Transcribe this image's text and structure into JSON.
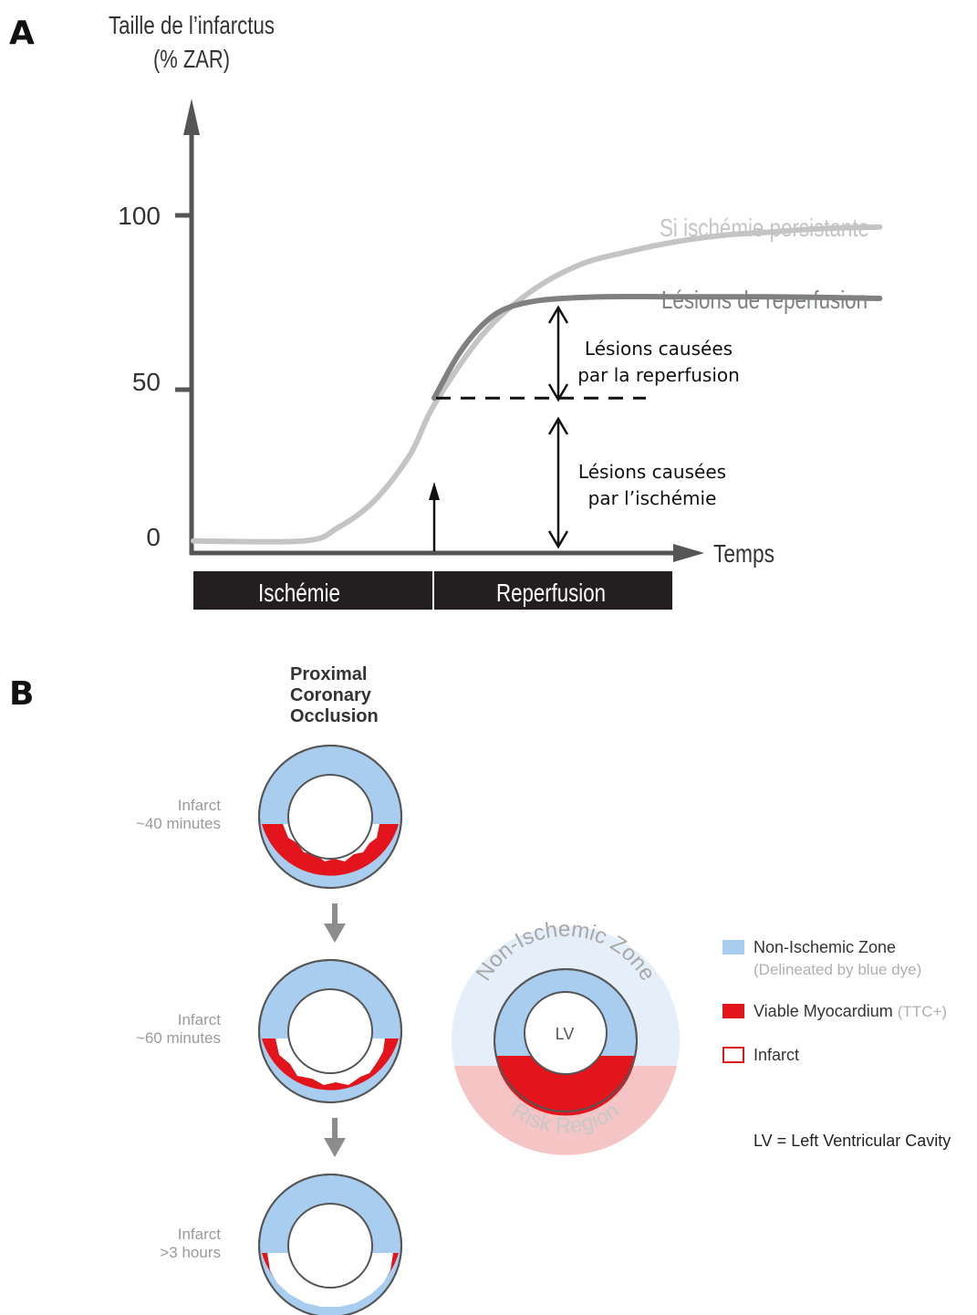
{
  "panel_a": {
    "label": "A",
    "y_axis_title_line1": "Taille de l’infarctus",
    "y_axis_title_line2": "(% ZAR)",
    "y_ticks": [
      "100",
      "50",
      "0"
    ],
    "x_axis_label": "Temps",
    "curve_persistent_label": "Si ischémie persistante",
    "curve_reperfusion_label": "Lésions de reperfusion",
    "annotation_reperfusion_line1": "Lésions causées",
    "annotation_reperfusion_line2": "par la reperfusion",
    "annotation_ischemia_line1": "Lésions causées",
    "annotation_ischemia_line2": "par l’ischémie",
    "phase_bar": [
      "Ischémie",
      "Reperfusion"
    ]
  },
  "chart_data": {
    "type": "line",
    "xlabel": "Temps",
    "ylabel": "Taille de l’infarctus (% ZAR)",
    "ylim": [
      0,
      100
    ],
    "y_ticks": [
      0,
      50,
      100
    ],
    "x_units": "relative time, 0 = start of ischemia, 1 = reperfusion onset",
    "reperfusion_x": 1.0,
    "ischemia_damage_level": 45,
    "series": [
      {
        "name": "Si ischémie persistante",
        "color": "#c4c4c4",
        "x": [
          0,
          0.46,
          0.6,
          0.75,
          0.9,
          1.0,
          1.2,
          1.4,
          1.6,
          1.8,
          2.0,
          2.2,
          2.4,
          2.6,
          2.85
        ],
        "y": [
          2,
          2,
          6,
          14,
          28,
          43,
          64,
          77,
          85,
          89,
          92,
          94,
          95,
          96,
          96.5
        ]
      },
      {
        "name": "Lésions de reperfusion",
        "color": "#7f8081",
        "x": [
          1.0,
          1.1,
          1.2,
          1.3,
          1.45,
          1.7,
          2.0,
          2.4,
          2.85
        ],
        "y": [
          45,
          58,
          67,
          72,
          74.5,
          75.5,
          75.5,
          75.5,
          75.0
        ]
      }
    ],
    "annotations": [
      {
        "text": "Lésions causées par la reperfusion",
        "from": 45,
        "to": 75
      },
      {
        "text": "Lésions causées par l’ischémie",
        "from": 0,
        "to": 45
      }
    ],
    "phases": [
      "Ischémie",
      "Reperfusion"
    ]
  },
  "panel_b": {
    "label": "B",
    "header_line1": "Proximal",
    "header_line2": "Coronary",
    "header_line3": "Occlusion",
    "stages": [
      {
        "line1": "Infarct",
        "line2": "~40 minutes",
        "infarct_extent": "subendocardial"
      },
      {
        "line1": "Infarct",
        "line2": "~60 minutes",
        "infarct_extent": "mid-wall"
      },
      {
        "line1": "Infarct",
        "line2": ">3 hours",
        "infarct_extent": "near-transmural"
      }
    ],
    "big_ring": {
      "top_label": "Non-Ischemic Zone",
      "bottom_label": "Risk Region",
      "center_label": "LV"
    },
    "legend": [
      {
        "label": "Non-Ischemic Zone",
        "note": "(Delineated by blue dye)",
        "color": "#a9cdee",
        "swatch": "filled"
      },
      {
        "label": "Viable Myocardium",
        "note": "(TTC+)",
        "color": "#e3141c",
        "swatch": "filled"
      },
      {
        "label": "Infarct",
        "note": "",
        "color": "#e3141c",
        "swatch": "outline"
      }
    ],
    "footnote": "LV = Left Ventricular Cavity"
  },
  "colors": {
    "axis": "#555556",
    "persistent_curve": "#c4c4c4",
    "reperfusion_curve": "#7f8081",
    "phase_bar": "#231f20",
    "non_ischemic_blue": "#a9cdee",
    "viable_red": "#e3141c",
    "zone_light_blue": "#e4eff9",
    "zone_light_pink": "#f5c5c6",
    "arrow_gray": "#8c8c8c"
  }
}
